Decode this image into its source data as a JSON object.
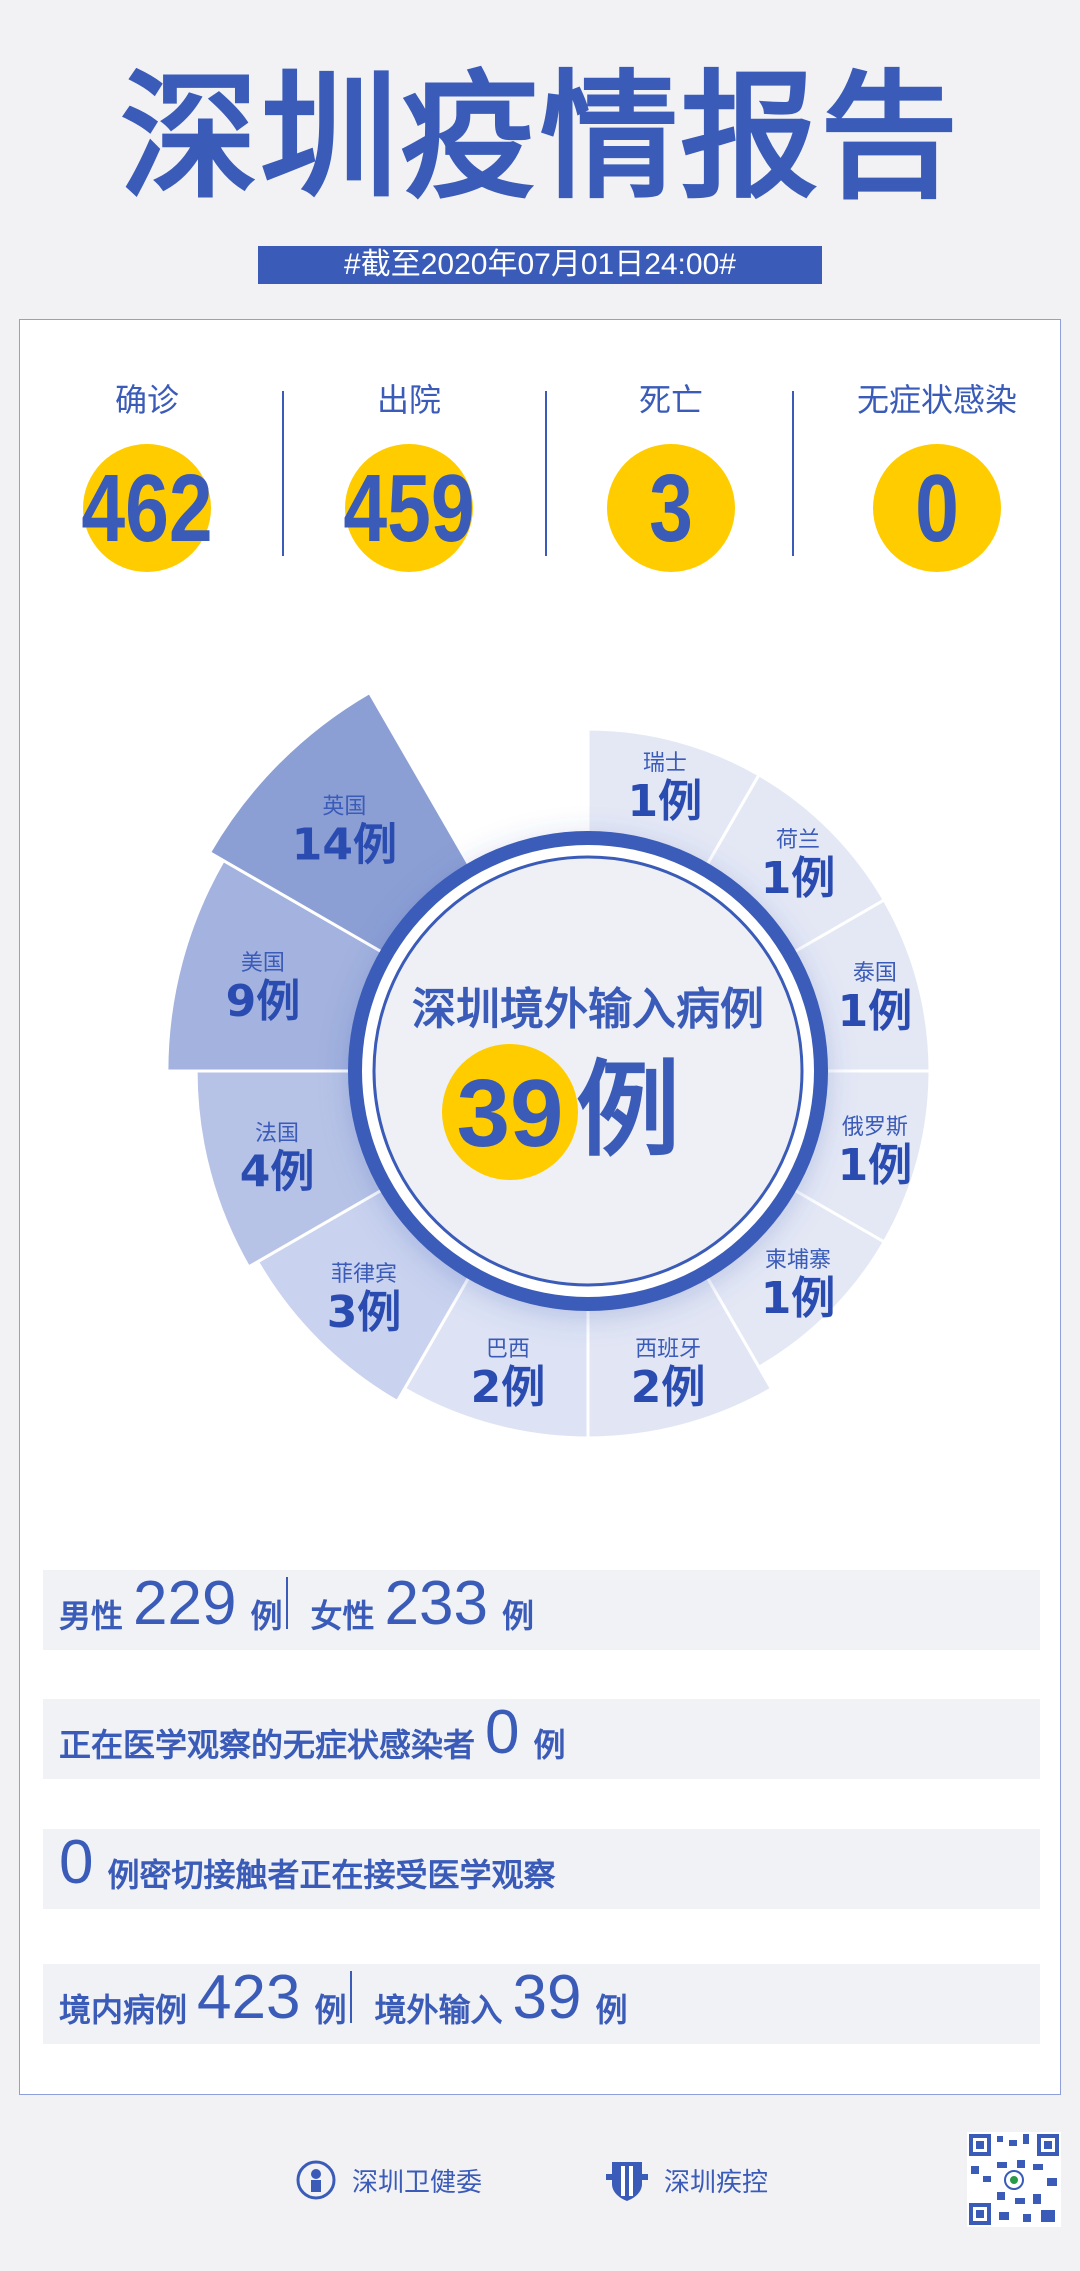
{
  "header": {
    "title": "深圳疫情报告",
    "date": "#截至2020年07月01日24:00#"
  },
  "stats": [
    {
      "label": "确诊",
      "value": "462"
    },
    {
      "label": "出院",
      "value": "459"
    },
    {
      "label": "死亡",
      "value": "3"
    },
    {
      "label": "无症状感染",
      "value": "0"
    }
  ],
  "chart_data": {
    "type": "pie",
    "center_title": "深圳境外输入病例",
    "center_value": "39",
    "center_unit": "例",
    "unit": "例",
    "categories": [
      "瑞士",
      "荷兰",
      "泰国",
      "俄罗斯",
      "柬埔寨",
      "西班牙",
      "巴西",
      "菲律宾",
      "法国",
      "美国",
      "英国"
    ],
    "values": [
      1,
      1,
      1,
      1,
      1,
      2,
      2,
      3,
      4,
      9,
      14
    ],
    "colors": [
      "#e4e8f5",
      "#e4e8f5",
      "#e4e8f5",
      "#e4e8f5",
      "#e4e8f5",
      "#e2e6f4",
      "#dde3f4",
      "#c9d2ee",
      "#b7c3e6",
      "#a3b2de",
      "#8c9fd4"
    ]
  },
  "rows": {
    "gender": {
      "male_label": "男性",
      "male": "229",
      "female_label": "女性",
      "female": "233",
      "unit": "例"
    },
    "asymptomatic": {
      "label": "正在医学观察的无症状感染者",
      "value": "0",
      "unit": "例"
    },
    "contacts": {
      "value": "0",
      "label": "例密切接触者正在接受医学观察"
    },
    "origin": {
      "local_label": "境内病例",
      "local": "423",
      "unit": "例",
      "imported_label": "境外输入",
      "imported": "39"
    }
  },
  "footer": {
    "org1": "深圳卫健委",
    "org2": "深圳疾控"
  },
  "colors": {
    "brand": "#3a5bb8",
    "accent": "#ffcc00"
  }
}
